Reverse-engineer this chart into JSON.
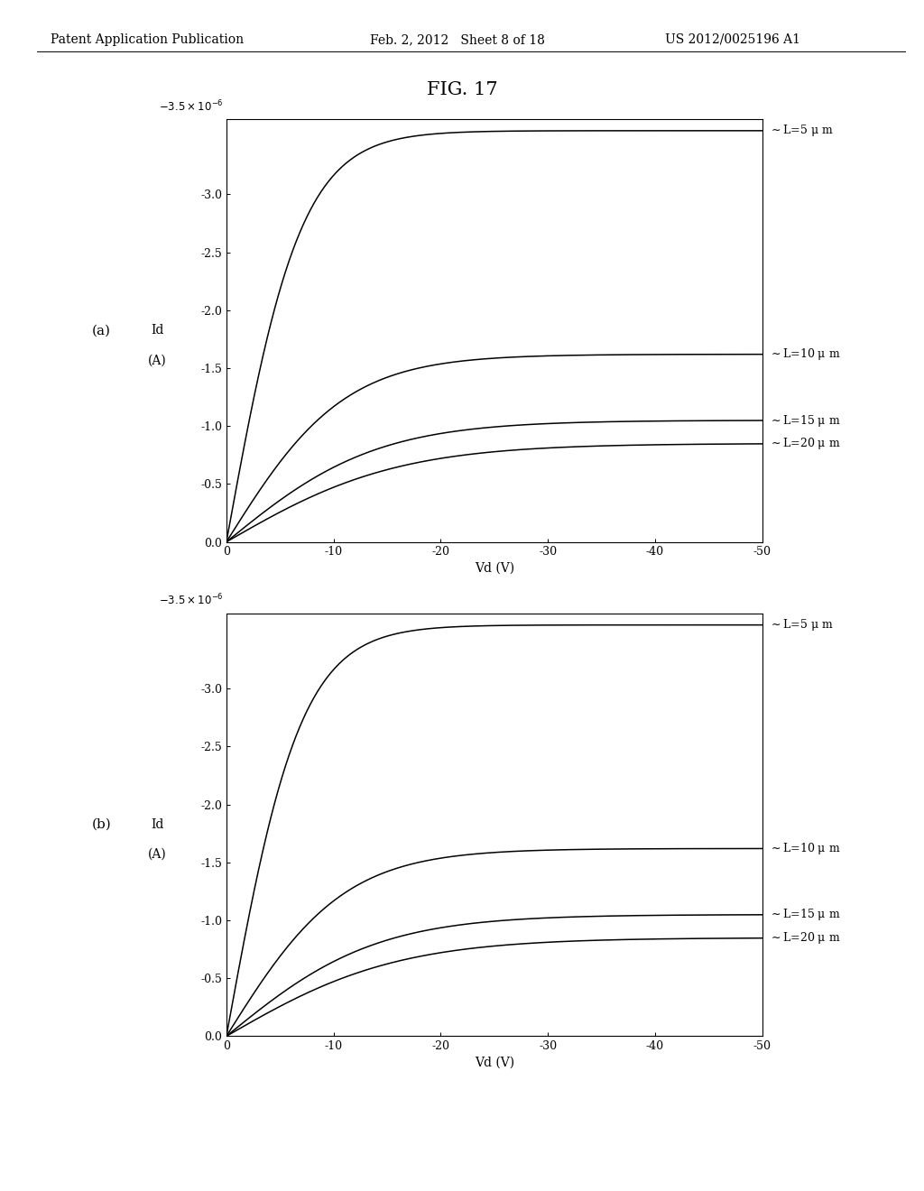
{
  "fig_title": "FIG. 17",
  "header_left": "Patent Application Publication",
  "header_mid": "Feb. 2, 2012   Sheet 8 of 18",
  "header_right": "US 2012/0025196 A1",
  "subplot_labels": [
    "(a)",
    "(b)"
  ],
  "ylabel_line1": "Id",
  "ylabel_line2": "(A)",
  "xlabel": "Vd (V)",
  "ytick_top_label": "-3.5×10⁻⁶",
  "yticks_vals": [
    0.0,
    -5e-07,
    -1e-06,
    -1.5e-06,
    -2e-06,
    -2.5e-06,
    -3e-06
  ],
  "yticks_labels": [
    "0.0",
    "-0.5",
    "-1.0",
    "-1.5",
    "-2.0",
    "-2.5",
    "-3.0"
  ],
  "xticks": [
    0,
    -10,
    -20,
    -30,
    -40,
    -50
  ],
  "curve_labels": [
    "L=5 μ m",
    "L=10 μ m",
    "L=15 μ m",
    "L=20 μ m"
  ],
  "curve_Isat_a": [
    -3.55e-06,
    -1.62e-06,
    -1.05e-06,
    -8.5e-07
  ],
  "curve_Vp_a": [
    -7.0,
    -11.0,
    -14.0,
    -16.0
  ],
  "curve_Isat_b": [
    -3.55e-06,
    -1.62e-06,
    -1.05e-06,
    -8.5e-07
  ],
  "curve_Vp_b": [
    -7.0,
    -11.0,
    -14.0,
    -16.0
  ],
  "background_color": "#ffffff",
  "plot_bg_color": "#ffffff",
  "line_color": "#000000",
  "font_size_header": 10,
  "font_size_title": 15,
  "font_size_axis": 10,
  "font_size_tick": 9,
  "font_size_label": 9
}
